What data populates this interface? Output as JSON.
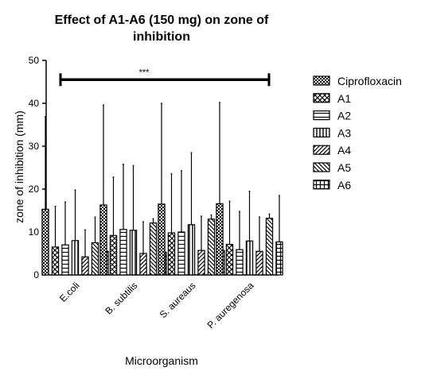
{
  "chart_data": {
    "type": "bar",
    "title_lines": [
      "Effect of A1-A6 (150 mg) on zone of",
      "inhibition"
    ],
    "xlabel": "Microorganism",
    "ylabel": "zone of inhibition (mm)",
    "ylim": [
      0,
      50
    ],
    "yticks": [
      0,
      10,
      20,
      30,
      40,
      50
    ],
    "categories": [
      "E.coli",
      "B. subtilis",
      "S. aureaus",
      "P. auregenosa"
    ],
    "series": [
      {
        "name": "Ciprofloxacin",
        "values": [
          15.3,
          16.3,
          16.5,
          16.6
        ],
        "errors": [
          21.6,
          23.3,
          23.5,
          23.6
        ],
        "pattern": "checker"
      },
      {
        "name": "A1",
        "values": [
          6.5,
          9.2,
          9.8,
          7.1
        ],
        "errors": [
          9.5,
          13.6,
          13.8,
          10.1
        ],
        "pattern": "crosshatch"
      },
      {
        "name": "A2",
        "values": [
          7.0,
          10.6,
          10.0,
          5.9
        ],
        "errors": [
          10.0,
          15.2,
          14.3,
          8.9
        ],
        "pattern": "hlines"
      },
      {
        "name": "A3",
        "values": [
          8.0,
          10.4,
          11.7,
          7.9
        ],
        "errors": [
          11.8,
          15.1,
          16.8,
          11.6
        ],
        "pattern": "vlines"
      },
      {
        "name": "A4",
        "values": [
          4.2,
          5.0,
          5.7,
          5.5
        ],
        "errors": [
          6.3,
          7.4,
          8.0,
          8.0
        ],
        "pattern": "diag-right"
      },
      {
        "name": "A5",
        "values": [
          7.5,
          12.1,
          13.0,
          13.2
        ],
        "errors": [
          6.0,
          1.0,
          1.0,
          1.0
        ],
        "pattern": "diag-left"
      },
      {
        "name": "A6",
        "values": [
          5.5,
          5.3,
          5.7,
          7.7
        ],
        "errors": [
          8.0,
          8.1,
          8.1,
          10.8
        ],
        "pattern": "grid"
      }
    ],
    "significance": {
      "label": "***",
      "from_category": 0,
      "to_category": 3,
      "y": 45.5
    },
    "legend": "right",
    "grid": false
  }
}
